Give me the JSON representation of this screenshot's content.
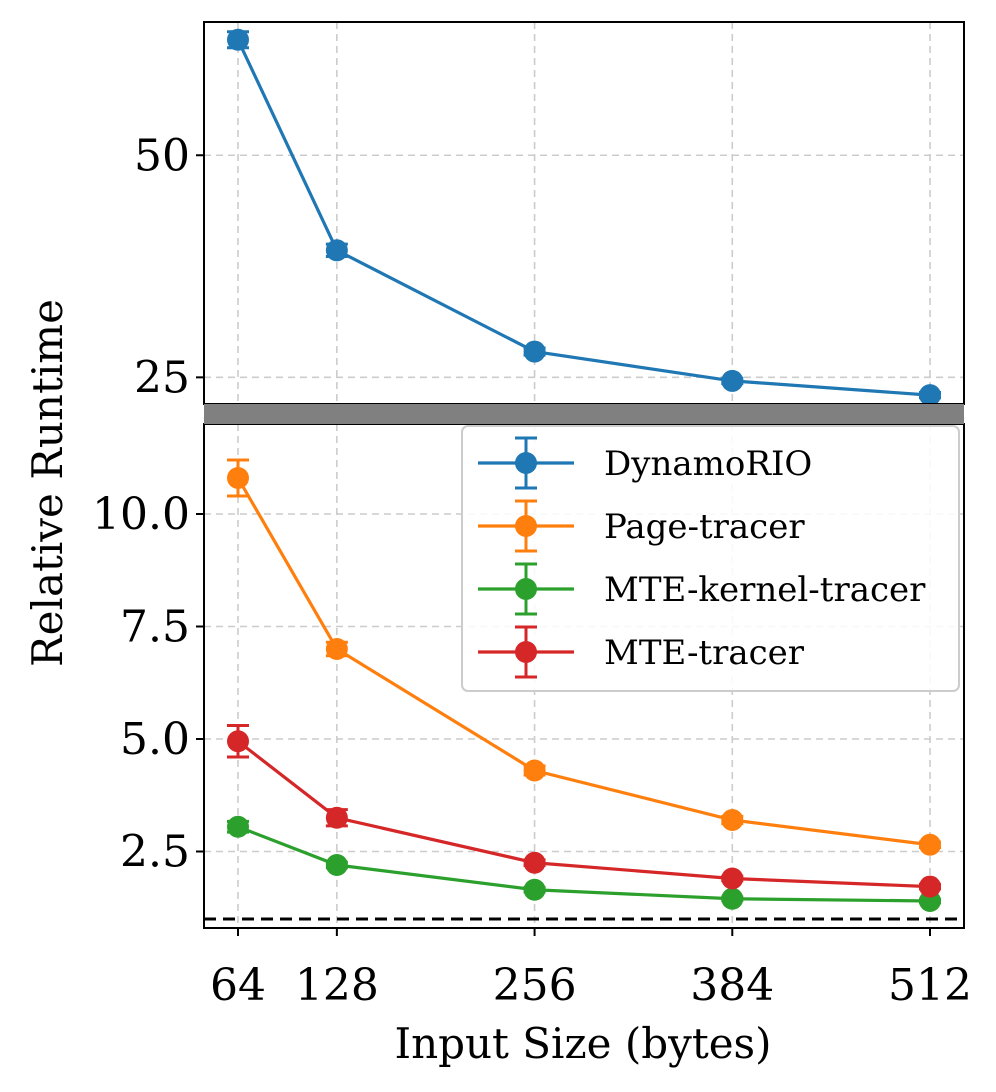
{
  "chart_data": {
    "type": "line",
    "xlabel": "Input Size (bytes)",
    "ylabel": "Relative Runtime",
    "x": [
      64,
      128,
      256,
      384,
      512
    ],
    "xticks": [
      "64",
      "128",
      "256",
      "384",
      "512"
    ],
    "broken_axis": true,
    "top_panel": {
      "ylim": [
        22,
        65
      ],
      "yticks": [
        25,
        50
      ],
      "ytick_labels": [
        "25",
        "50"
      ]
    },
    "bottom_panel": {
      "ylim": [
        0.8,
        12.0
      ],
      "yticks": [
        2.5,
        5.0,
        7.5,
        10.0
      ],
      "ytick_labels": [
        "2.5",
        "5.0",
        "7.5",
        "10.0"
      ]
    },
    "baseline": 1.0,
    "grid": true,
    "legend_position": "upper right of bottom panel",
    "series": [
      {
        "name": "DynamoRIO",
        "color": "#1f77b4",
        "panel": "top",
        "values": [
          63.0,
          39.3,
          27.9,
          24.6,
          23.0
        ],
        "errors": [
          0.9,
          0.7,
          0.4,
          0.3,
          0.3
        ]
      },
      {
        "name": "Page-tracer",
        "color": "#ff7f0e",
        "panel": "bottom",
        "values": [
          10.8,
          7.0,
          4.3,
          3.2,
          2.65
        ],
        "errors": [
          0.4,
          0.15,
          0.1,
          0.08,
          0.06
        ]
      },
      {
        "name": "MTE-kernel-tracer",
        "color": "#2ca02c",
        "panel": "bottom",
        "values": [
          3.05,
          2.2,
          1.65,
          1.45,
          1.4
        ],
        "errors": [
          0.12,
          0.06,
          0.05,
          0.04,
          0.04
        ]
      },
      {
        "name": "MTE-tracer",
        "color": "#d62728",
        "panel": "bottom",
        "values": [
          4.95,
          3.25,
          2.25,
          1.9,
          1.72
        ],
        "errors": [
          0.35,
          0.18,
          0.06,
          0.05,
          0.05
        ]
      }
    ]
  }
}
